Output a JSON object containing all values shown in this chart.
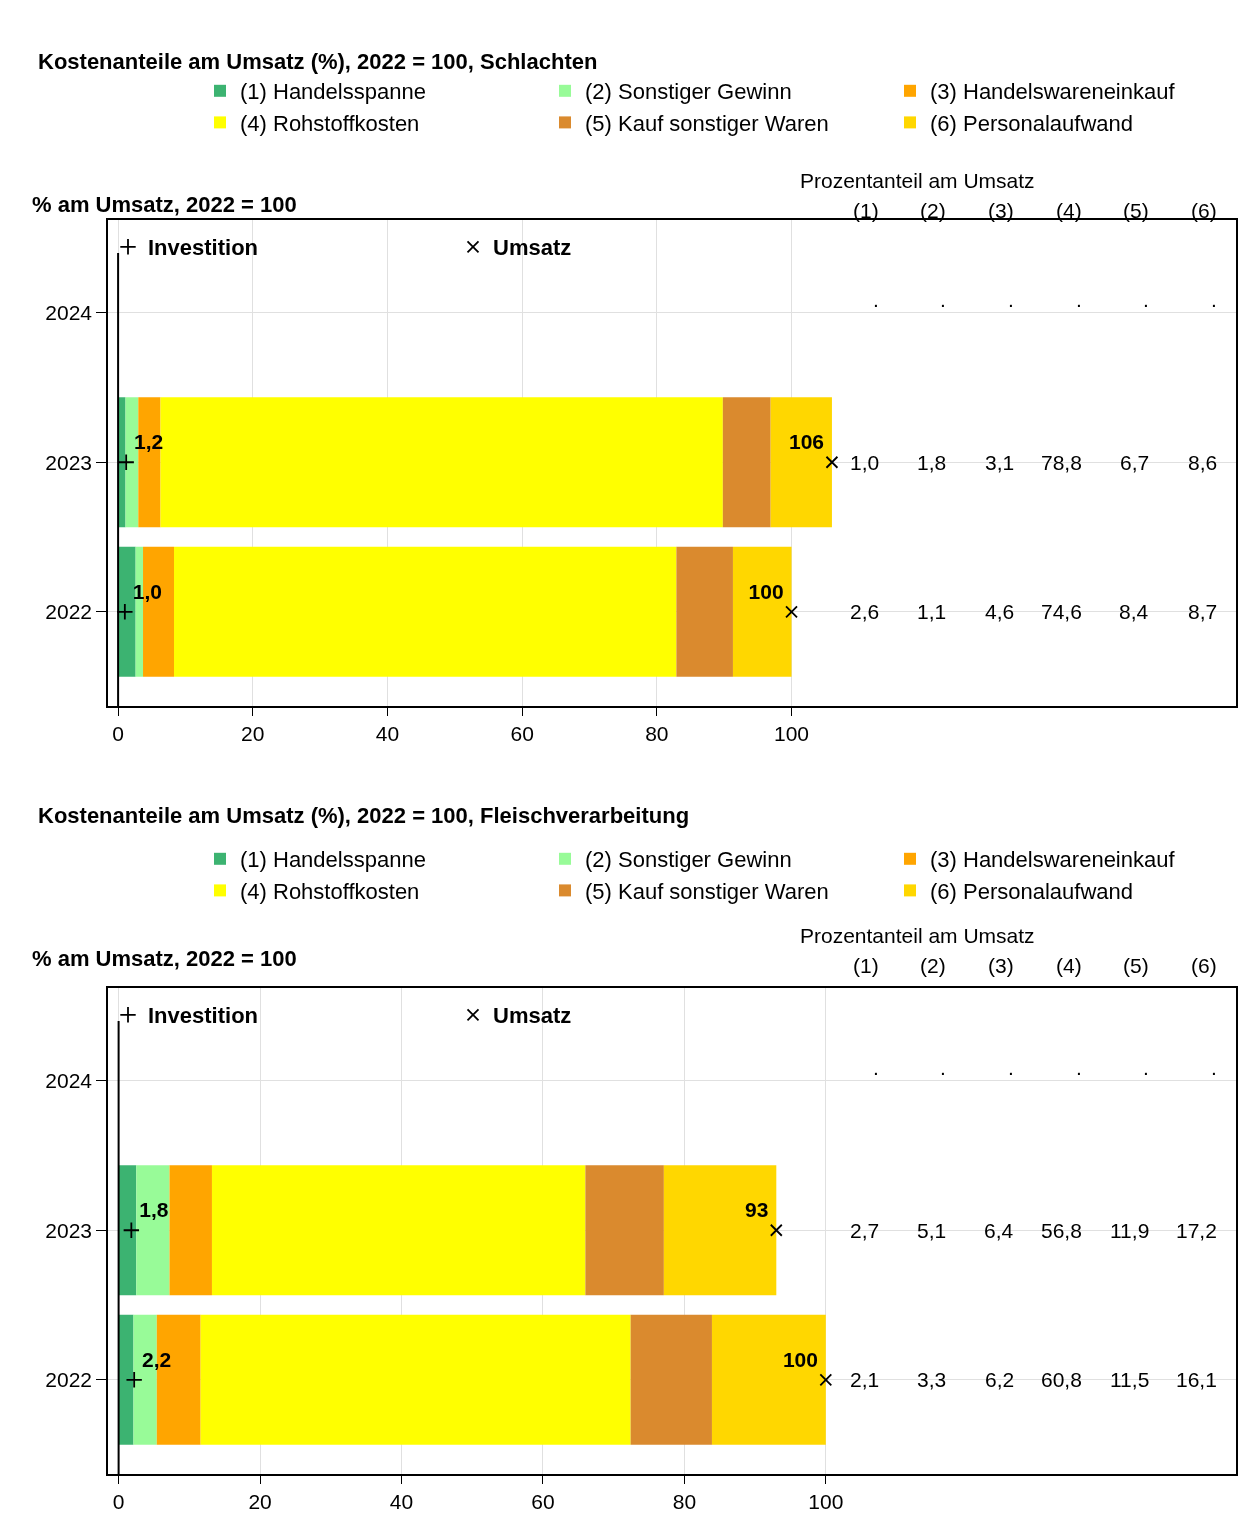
{
  "chart_data": [
    {
      "type": "bar",
      "orientation": "horizontal",
      "stacked": true,
      "title": "Kostenanteile am Umsatz (%), 2022 = 100, Schlachten",
      "subtitle": "% am Umsatz, 2022 = 100",
      "categories": [
        "2024",
        "2023",
        "2022"
      ],
      "series": [
        {
          "name": "(1) Handelsspanne",
          "color": "#3cb371",
          "values": [
            null,
            1.1,
            2.6
          ]
        },
        {
          "name": "(2) Sonstiger Gewinn",
          "color": "#98fb98",
          "values": [
            null,
            1.9,
            1.1
          ]
        },
        {
          "name": "(3) Handelswareneinkauf",
          "color": "#ffa500",
          "values": [
            null,
            3.3,
            4.6
          ]
        },
        {
          "name": "(4) Rohstoffkosten",
          "color": "#ffff00",
          "values": [
            null,
            83.5,
            74.6
          ]
        },
        {
          "name": "(5) Kauf sonstiger Waren",
          "color": "#da8a2e",
          "values": [
            null,
            7.1,
            8.4
          ]
        },
        {
          "name": "(6) Personalaufwand",
          "color": "#ffd700",
          "values": [
            null,
            9.1,
            8.7
          ]
        },
        {
          "type": "scatter",
          "name": "Investition",
          "color": "#000000",
          "marker": "cross",
          "values": [
            null,
            1.2,
            1.0
          ],
          "value_labels": [
            null,
            "1,2",
            "1,0"
          ]
        },
        {
          "type": "scatter",
          "name": "Umsatz",
          "color": "#000000",
          "marker": "x",
          "values": [
            null,
            106,
            100
          ],
          "value_labels": [
            null,
            "106",
            "100"
          ]
        }
      ],
      "annotations": [
        "Prozentanteil am Umsatz",
        "(1)",
        "(2)",
        "(3)",
        "(4)",
        "(5)",
        "(6)",
        ".",
        ".",
        ".",
        ".",
        ".",
        ".",
        "1,0",
        "1,8",
        "3,1",
        "78,8",
        "6,7",
        "8,6",
        "2,6",
        "1,1",
        "4,6",
        "74,6",
        "8,4",
        "8,7"
      ],
      "xlim": [
        -1.5,
        166
      ],
      "xticks": [
        0,
        20,
        40,
        60,
        80,
        100
      ],
      "grid": true,
      "legend": "top",
      "ref_lines": [
        {
          "axis": "x",
          "value": 0,
          "color": "#000000"
        }
      ]
    },
    {
      "type": "bar",
      "orientation": "horizontal",
      "stacked": true,
      "title": "Kostenanteile am Umsatz (%), 2022 = 100, Fleischverarbeitung",
      "subtitle": "% am Umsatz, 2022 = 100",
      "categories": [
        "2024",
        "2023",
        "2022"
      ],
      "series": [
        {
          "name": "(1) Handelsspanne",
          "color": "#3cb371",
          "values": [
            null,
            2.5,
            2.1
          ]
        },
        {
          "name": "(2) Sonstiger Gewinn",
          "color": "#98fb98",
          "values": [
            null,
            4.7,
            3.3
          ]
        },
        {
          "name": "(3) Handelswareneinkauf",
          "color": "#ffa500",
          "values": [
            null,
            6.0,
            6.2
          ]
        },
        {
          "name": "(4) Rohstoffkosten",
          "color": "#ffff00",
          "values": [
            null,
            52.8,
            60.8
          ]
        },
        {
          "name": "(5) Kauf sonstiger Waren",
          "color": "#da8a2e",
          "values": [
            null,
            11.1,
            11.5
          ]
        },
        {
          "name": "(6) Personalaufwand",
          "color": "#ffd700",
          "values": [
            null,
            15.9,
            16.1
          ]
        },
        {
          "type": "scatter",
          "name": "Investition",
          "color": "#000000",
          "marker": "cross",
          "values": [
            null,
            1.8,
            2.2
          ],
          "value_labels": [
            null,
            "1,8",
            "2,2"
          ]
        },
        {
          "type": "scatter",
          "name": "Umsatz",
          "color": "#000000",
          "marker": "x",
          "values": [
            null,
            93,
            100
          ],
          "value_labels": [
            null,
            "93",
            "100"
          ]
        }
      ],
      "annotations": [
        "Prozentanteil am Umsatz",
        "(1)",
        "(2)",
        "(3)",
        "(4)",
        "(5)",
        "(6)",
        ".",
        ".",
        ".",
        ".",
        ".",
        ".",
        "2,7",
        "5,1",
        "6,4",
        "56,8",
        "11,9",
        "17,2",
        "2,1",
        "3,3",
        "6,2",
        "60,8",
        "11,5",
        "16,1"
      ],
      "xlim": [
        -1.5,
        158
      ],
      "xticks": [
        0,
        20,
        40,
        60,
        80,
        100
      ],
      "grid": true,
      "legend": "top",
      "ref_lines": [
        {
          "axis": "x",
          "value": 0,
          "color": "#000000"
        }
      ]
    }
  ]
}
